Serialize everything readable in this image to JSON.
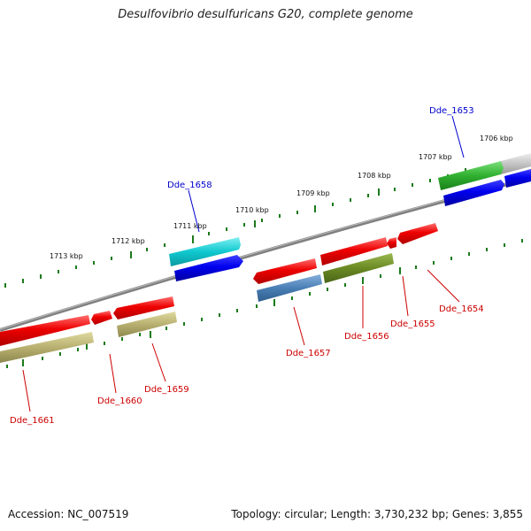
{
  "title": "Desulfovibrio desulfuricans G20, complete genome",
  "accession": "Accession: NC_007519",
  "summary": "Topology: circular; Length: 3,730,232 bp; Genes: 3,855",
  "ticks": [
    "1706 kbp",
    "1707 kbp",
    "1708 kbp",
    "1709 kbp",
    "1710 kbp",
    "1711 kbp",
    "1712 kbp",
    "1713 kbp"
  ],
  "genes": [
    {
      "name": "Dde_1653",
      "color": "#0000cc"
    },
    {
      "name": "Dde_1658",
      "color": "#0000cc"
    },
    {
      "name": "Dde_1654",
      "color": "#cc0000"
    },
    {
      "name": "Dde_1655",
      "color": "#cc0000"
    },
    {
      "name": "Dde_1656",
      "color": "#cc0000"
    },
    {
      "name": "Dde_1657",
      "color": "#cc0000"
    },
    {
      "name": "Dde_1659",
      "color": "#cc0000"
    },
    {
      "name": "Dde_1660",
      "color": "#cc0000"
    },
    {
      "name": "Dde_1661",
      "color": "#cc0000"
    }
  ],
  "colors": {
    "backbone": "#8a8a8a",
    "tick": "#1a7a1a",
    "forward_cds": "#e00000",
    "reverse_cds": "#0000dd",
    "cyan": "#10c8d0",
    "green": "#30b030",
    "olive": "#6b8a23",
    "khaki": "#b8b070",
    "steel": "#4a7fb5"
  }
}
